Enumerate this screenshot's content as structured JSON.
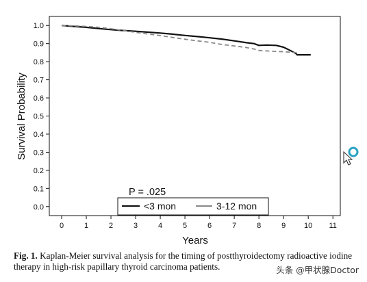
{
  "chart_data": {
    "type": "line",
    "title": "",
    "xlabel": "Years",
    "ylabel": "Survival Probability",
    "xlim": [
      -0.5,
      11.3
    ],
    "ylim": [
      -0.05,
      1.05
    ],
    "x_ticks": [
      0,
      1,
      2,
      3,
      4,
      5,
      6,
      7,
      8,
      9,
      10,
      11
    ],
    "y_ticks": [
      0.0,
      0.1,
      0.2,
      0.3,
      0.4,
      0.5,
      0.6,
      0.7,
      0.8,
      0.9,
      1.0
    ],
    "y_tick_labels": [
      "0.0",
      "0.1",
      "0.2",
      "0.3",
      "0.4",
      "0.5",
      "0.6",
      "0.7",
      "0.8",
      "0.9",
      "1.0"
    ],
    "grid": false,
    "annotation": "P = .025",
    "legend_position": "bottom-center",
    "series": [
      {
        "name": "<3 mon",
        "color": "#111111",
        "style": "solid",
        "x": [
          0,
          0.5,
          1,
          1.5,
          2,
          2.5,
          3,
          3.5,
          4,
          4.5,
          5,
          5.5,
          6,
          6.5,
          7,
          7.5,
          7.8,
          8,
          8.3,
          8.7,
          9,
          9.3,
          9.5,
          9.55,
          10,
          10.1
        ],
        "y": [
          1.0,
          0.995,
          0.99,
          0.983,
          0.977,
          0.972,
          0.968,
          0.963,
          0.958,
          0.952,
          0.945,
          0.939,
          0.932,
          0.925,
          0.915,
          0.905,
          0.9,
          0.89,
          0.892,
          0.89,
          0.88,
          0.86,
          0.845,
          0.838,
          0.838,
          0.838
        ]
      },
      {
        "name": "3-12 mon",
        "color": "#888888",
        "style": "dashed",
        "x": [
          0,
          0.5,
          1,
          1.5,
          2,
          2.5,
          3,
          3.5,
          4,
          4.5,
          5,
          5.5,
          6,
          6.5,
          7,
          7.5,
          7.8,
          8,
          8.5,
          9,
          9.5,
          9.6
        ],
        "y": [
          1.0,
          0.998,
          0.995,
          0.99,
          0.982,
          0.972,
          0.962,
          0.953,
          0.944,
          0.934,
          0.924,
          0.915,
          0.907,
          0.895,
          0.887,
          0.878,
          0.87,
          0.862,
          0.858,
          0.855,
          0.85,
          0.855
        ]
      }
    ]
  },
  "caption": {
    "label": "Fig. 1.",
    "text": " Kaplan-Meier survival analysis for the timing of postthyroidectomy radioactive iodine therapy in high-risk papillary thyroid carcinoma patients."
  },
  "watermark": "头条 @甲状腺Doctor"
}
